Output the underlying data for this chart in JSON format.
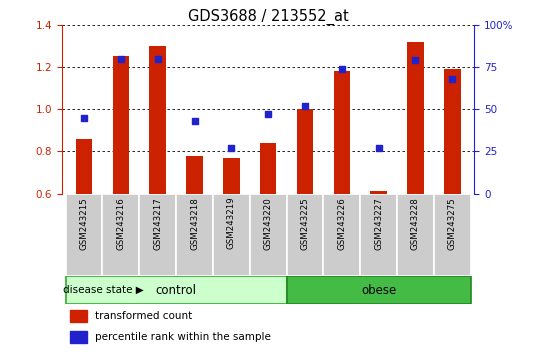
{
  "title": "GDS3688 / 213552_at",
  "categories": [
    "GSM243215",
    "GSM243216",
    "GSM243217",
    "GSM243218",
    "GSM243219",
    "GSM243220",
    "GSM243225",
    "GSM243226",
    "GSM243227",
    "GSM243228",
    "GSM243275"
  ],
  "red_values": [
    0.86,
    1.25,
    1.3,
    0.78,
    0.77,
    0.84,
    1.0,
    1.18,
    0.61,
    1.32,
    1.19
  ],
  "blue_pct": [
    45,
    80,
    80,
    43,
    27,
    47,
    52,
    74,
    27,
    79,
    68
  ],
  "ylim_left": [
    0.6,
    1.4
  ],
  "ylim_right": [
    0,
    100
  ],
  "yticks_left": [
    0.6,
    0.8,
    1.0,
    1.2,
    1.4
  ],
  "yticks_right": [
    0,
    25,
    50,
    75,
    100
  ],
  "bar_baseline": 0.6,
  "bar_color": "#CC2200",
  "dot_color": "#2222CC",
  "ctrl_count": 6,
  "obese_count": 5,
  "control_color_light": "#CCFFCC",
  "control_color_border": "#33AA33",
  "obese_color": "#44BB44",
  "obese_color_border": "#228822",
  "label_control": "control",
  "label_obese": "obese",
  "disease_state_label": "disease state",
  "legend_red": "transformed count",
  "legend_blue": "percentile rank within the sample",
  "gray_cell": "#CCCCCC",
  "tick_fontsize": 7.5,
  "title_fontsize": 10.5
}
